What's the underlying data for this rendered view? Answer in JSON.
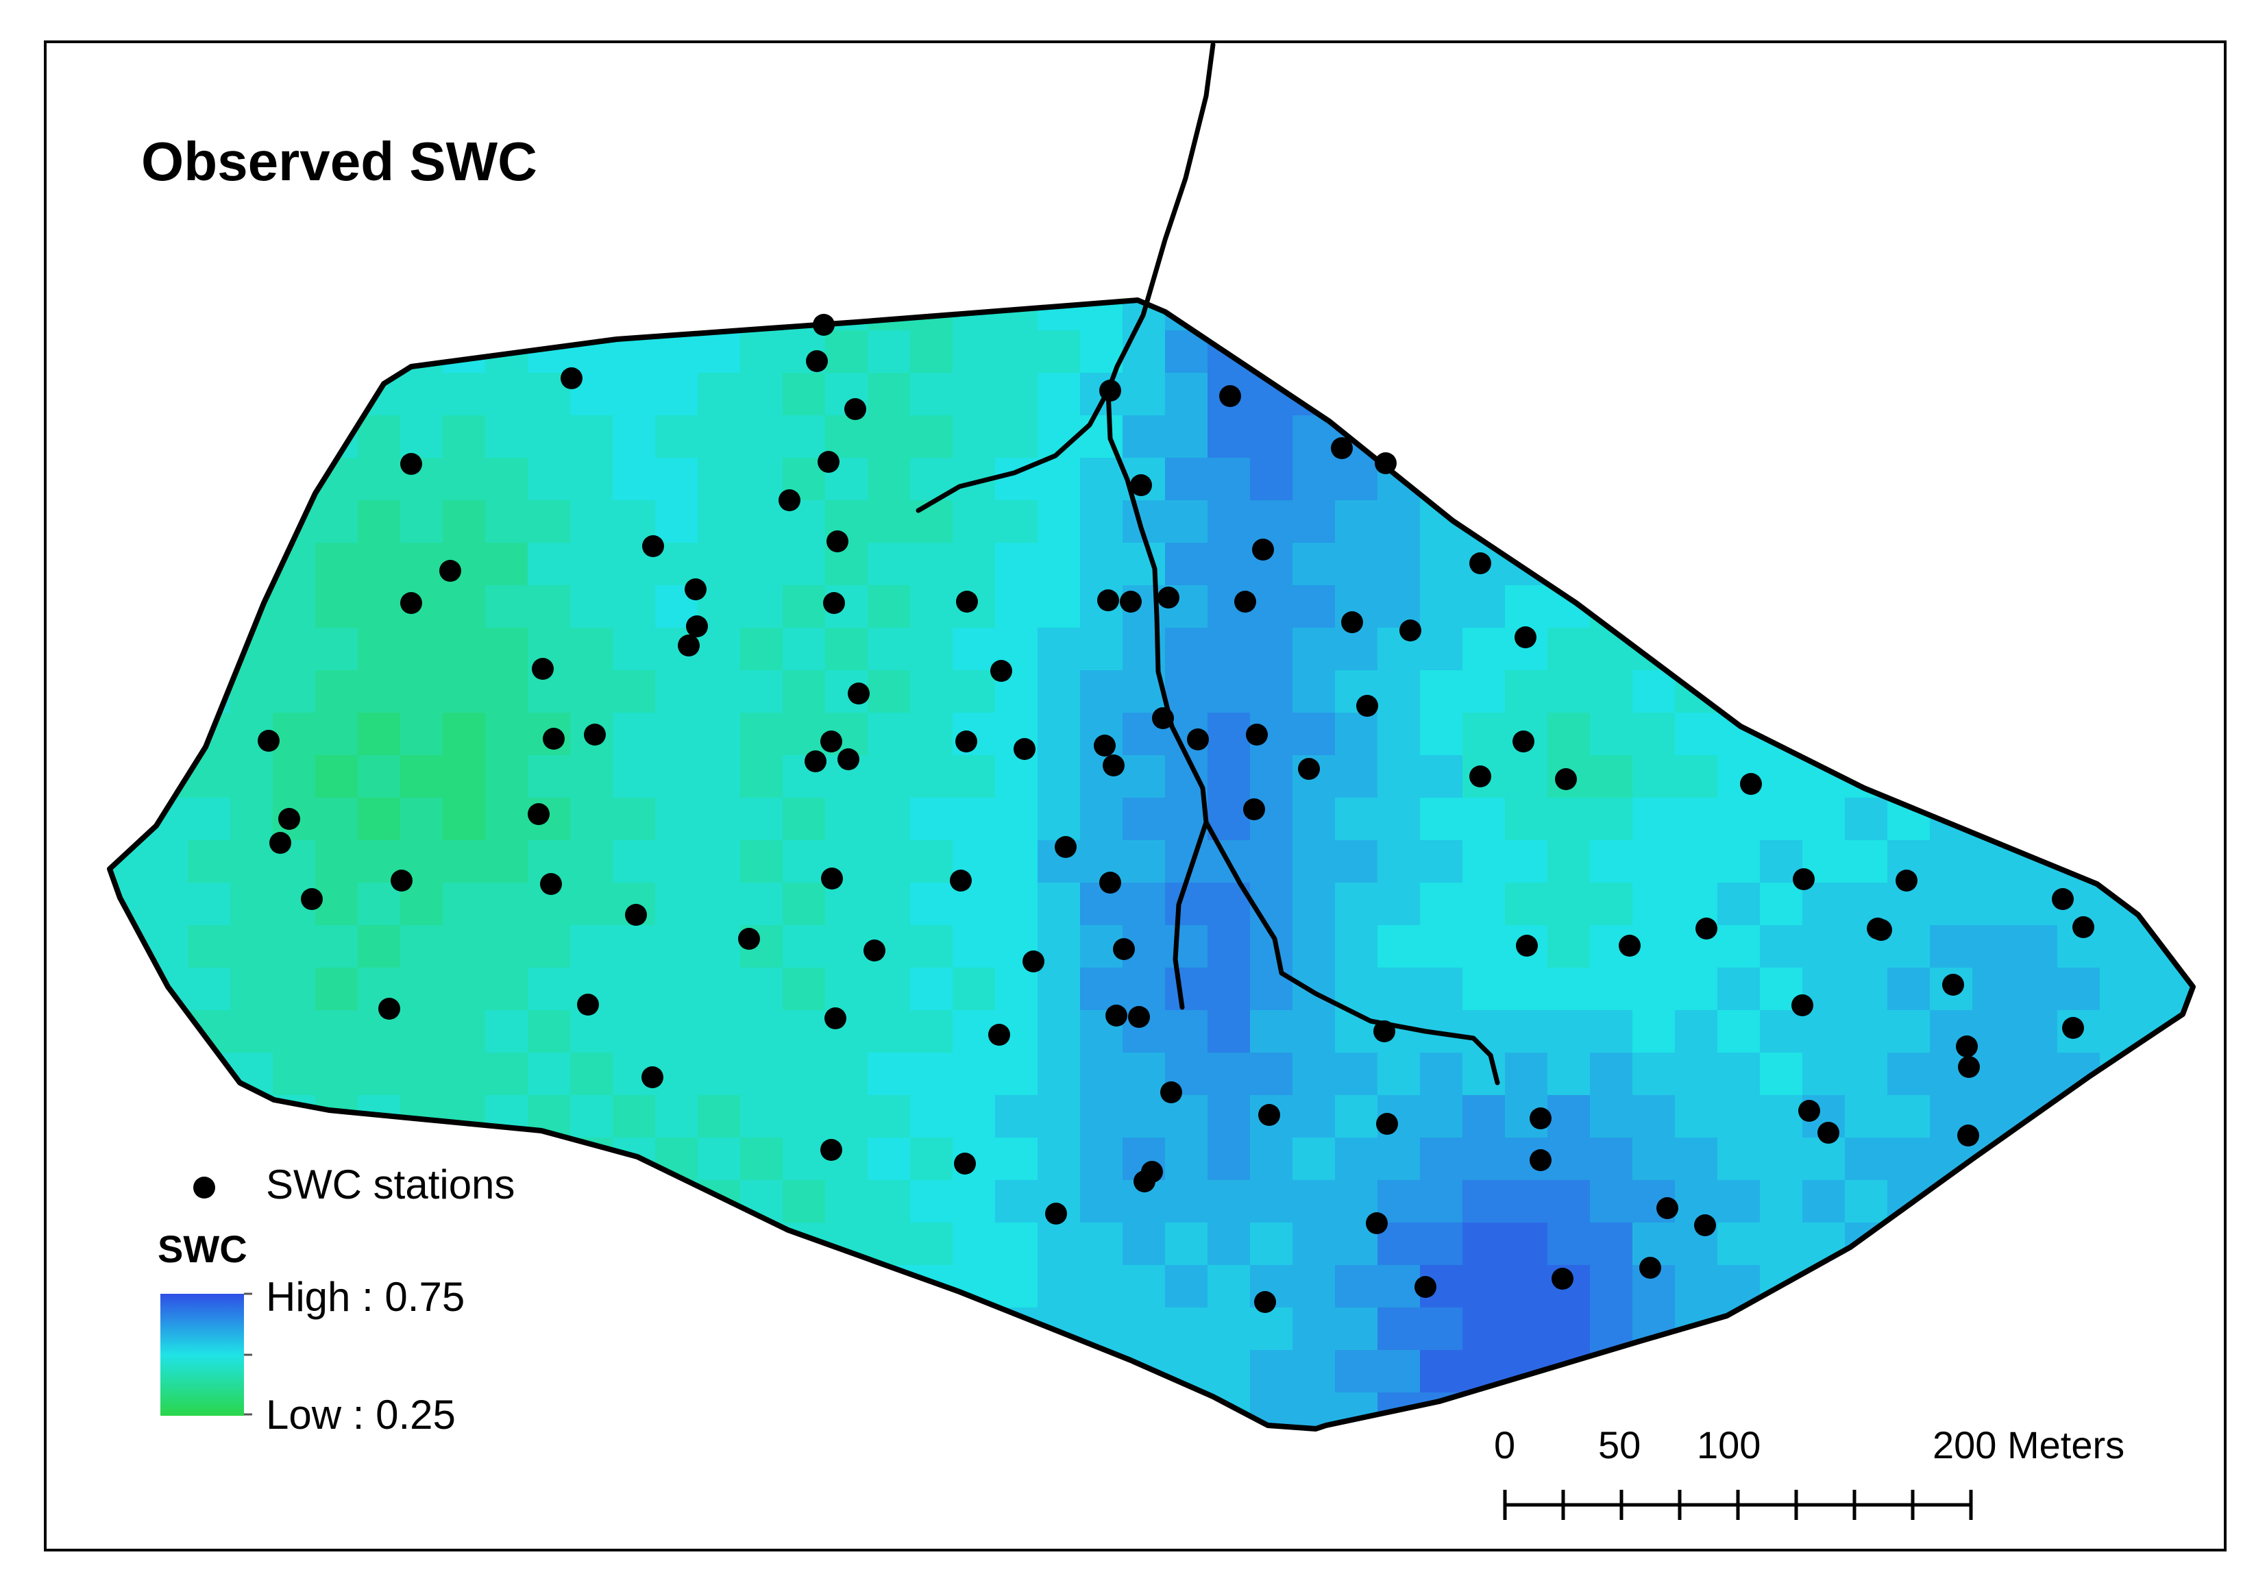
{
  "map": {
    "title": "Observed SWC",
    "colors": {
      "high": "#2f4fe6",
      "mid": "#1fe3e6",
      "low": "#2ad64a",
      "boundary": "#000000",
      "station": "#000000"
    },
    "surface_samples": [
      {
        "row": 0,
        "vals": [
          0.45,
          0.47,
          0.48,
          0.5,
          0.52,
          0.5,
          0.45,
          0.42,
          0.45,
          0.52,
          0.68,
          0.7,
          0.6,
          0.52,
          0.48,
          0.46,
          0.47,
          0.48,
          0.48,
          0.5
        ]
      },
      {
        "row": 1,
        "vals": [
          0.44,
          0.44,
          0.4,
          0.38,
          0.45,
          0.48,
          0.44,
          0.43,
          0.48,
          0.55,
          0.63,
          0.6,
          0.55,
          0.5,
          0.48,
          0.49,
          0.5,
          0.5,
          0.5,
          0.5
        ]
      },
      {
        "row": 2,
        "vals": [
          0.46,
          0.42,
          0.36,
          0.34,
          0.4,
          0.46,
          0.43,
          0.46,
          0.5,
          0.6,
          0.66,
          0.58,
          0.5,
          0.42,
          0.48,
          0.5,
          0.52,
          0.54,
          0.54,
          0.52
        ]
      },
      {
        "row": 3,
        "vals": [
          0.47,
          0.44,
          0.4,
          0.42,
          0.44,
          0.46,
          0.45,
          0.47,
          0.5,
          0.62,
          0.66,
          0.55,
          0.52,
          0.5,
          0.52,
          0.53,
          0.56,
          0.58,
          0.55,
          0.52
        ]
      },
      {
        "row": 4,
        "vals": [
          0.46,
          0.45,
          0.44,
          0.45,
          0.46,
          0.44,
          0.44,
          0.48,
          0.52,
          0.58,
          0.56,
          0.58,
          0.68,
          0.7,
          0.6,
          0.55,
          0.58,
          0.6,
          0.56,
          0.52
        ]
      },
      {
        "row": 5,
        "vals": [
          0.46,
          0.45,
          0.44,
          0.4,
          0.38,
          0.42,
          0.46,
          0.48,
          0.5,
          0.52,
          0.55,
          0.6,
          0.72,
          0.72,
          0.6,
          0.54,
          0.55,
          0.56,
          0.54,
          0.52
        ]
      }
    ],
    "stations_label": "SWC stations",
    "legend": {
      "title": "SWC",
      "high_label": "High : 0.75",
      "low_label": "Low : 0.25"
    },
    "scale_bar": {
      "labels": [
        "0",
        "50",
        "100",
        "200 Meters"
      ],
      "ticks": [
        0,
        25,
        50,
        75,
        100,
        125,
        150,
        175,
        200
      ]
    }
  }
}
